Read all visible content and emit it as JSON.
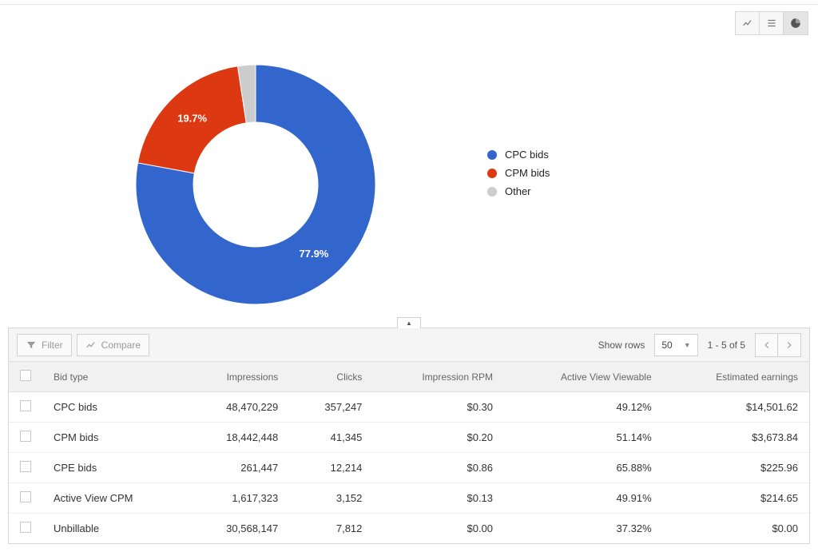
{
  "chart": {
    "type": "donut",
    "inner_radius_ratio": 0.52,
    "background_color": "#ffffff",
    "segments": [
      {
        "key": "cpc",
        "label": "CPC bids",
        "value": 77.9,
        "color": "#3366cc",
        "show_label": "77.9%"
      },
      {
        "key": "cpm",
        "label": "CPM bids",
        "value": 19.7,
        "color": "#dc3912",
        "show_label": "19.7%"
      },
      {
        "key": "other",
        "label": "Other",
        "value": 2.4,
        "color": "#cccccc",
        "show_label": ""
      }
    ],
    "label_color": "#ffffff",
    "label_fontsize": 13
  },
  "legend": {
    "items": [
      {
        "label": "CPC bids",
        "color": "#3366cc"
      },
      {
        "label": "CPM bids",
        "color": "#dc3912"
      },
      {
        "label": "Other",
        "color": "#cccccc"
      }
    ]
  },
  "view_toggle": {
    "line_icon": "line-chart-icon",
    "bar_icon": "bar-chart-icon",
    "pie_icon": "pie-chart-icon",
    "active": "pie"
  },
  "toolbar": {
    "filter_label": "Filter",
    "compare_label": "Compare",
    "show_rows_label": "Show rows",
    "rows_value": "50",
    "range_label": "1 - 5 of 5"
  },
  "table": {
    "columns": [
      "Bid type",
      "Impressions",
      "Clicks",
      "Impression RPM",
      "Active View Viewable",
      "Estimated earnings"
    ],
    "column_align": [
      "left",
      "right",
      "right",
      "right",
      "right",
      "right"
    ],
    "rows": [
      [
        "CPC bids",
        "48,470,229",
        "357,247",
        "$0.30",
        "49.12%",
        "$14,501.62"
      ],
      [
        "CPM bids",
        "18,442,448",
        "41,345",
        "$0.20",
        "51.14%",
        "$3,673.84"
      ],
      [
        "CPE bids",
        "261,447",
        "12,214",
        "$0.86",
        "65.88%",
        "$225.96"
      ],
      [
        "Active View CPM",
        "1,617,323",
        "3,152",
        "$0.13",
        "49.91%",
        "$214.65"
      ],
      [
        "Unbillable",
        "30,568,147",
        "7,812",
        "$0.00",
        "37.32%",
        "$0.00"
      ]
    ]
  },
  "colors": {
    "border": "#d8d8d8",
    "header_bg": "#f1f1f1",
    "toolbar_bg": "#f5f5f5",
    "text": "#333333",
    "muted": "#9a9a9a"
  }
}
